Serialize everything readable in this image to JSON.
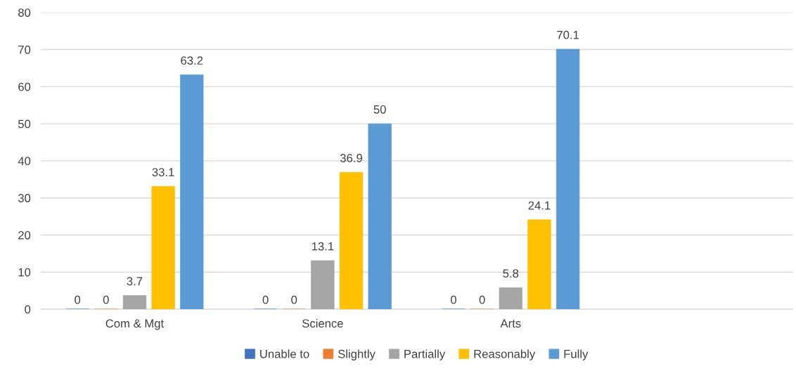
{
  "chart_data": {
    "type": "bar",
    "categories": [
      "Com & Mgt",
      "Science",
      "Arts",
      null
    ],
    "series": [
      {
        "name": "Unable to",
        "color": "#4472c4",
        "values": [
          0,
          0,
          0,
          null
        ]
      },
      {
        "name": "Slightly",
        "color": "#ed7d31",
        "values": [
          0,
          0,
          0,
          null
        ]
      },
      {
        "name": "Partially",
        "color": "#a5a5a5",
        "values": [
          3.7,
          13.1,
          5.8,
          null
        ]
      },
      {
        "name": "Reasonably",
        "color": "#ffc000",
        "values": [
          33.1,
          36.9,
          24.1,
          null
        ]
      },
      {
        "name": "Fully",
        "color": "#5b9bd5",
        "values": [
          63.2,
          50,
          70.1,
          null
        ]
      }
    ],
    "ylim": [
      0,
      80
    ],
    "yticks": [
      0,
      10,
      20,
      30,
      40,
      50,
      60,
      70,
      80
    ],
    "grid": "y",
    "legend": "bottom",
    "data_labels": true
  }
}
